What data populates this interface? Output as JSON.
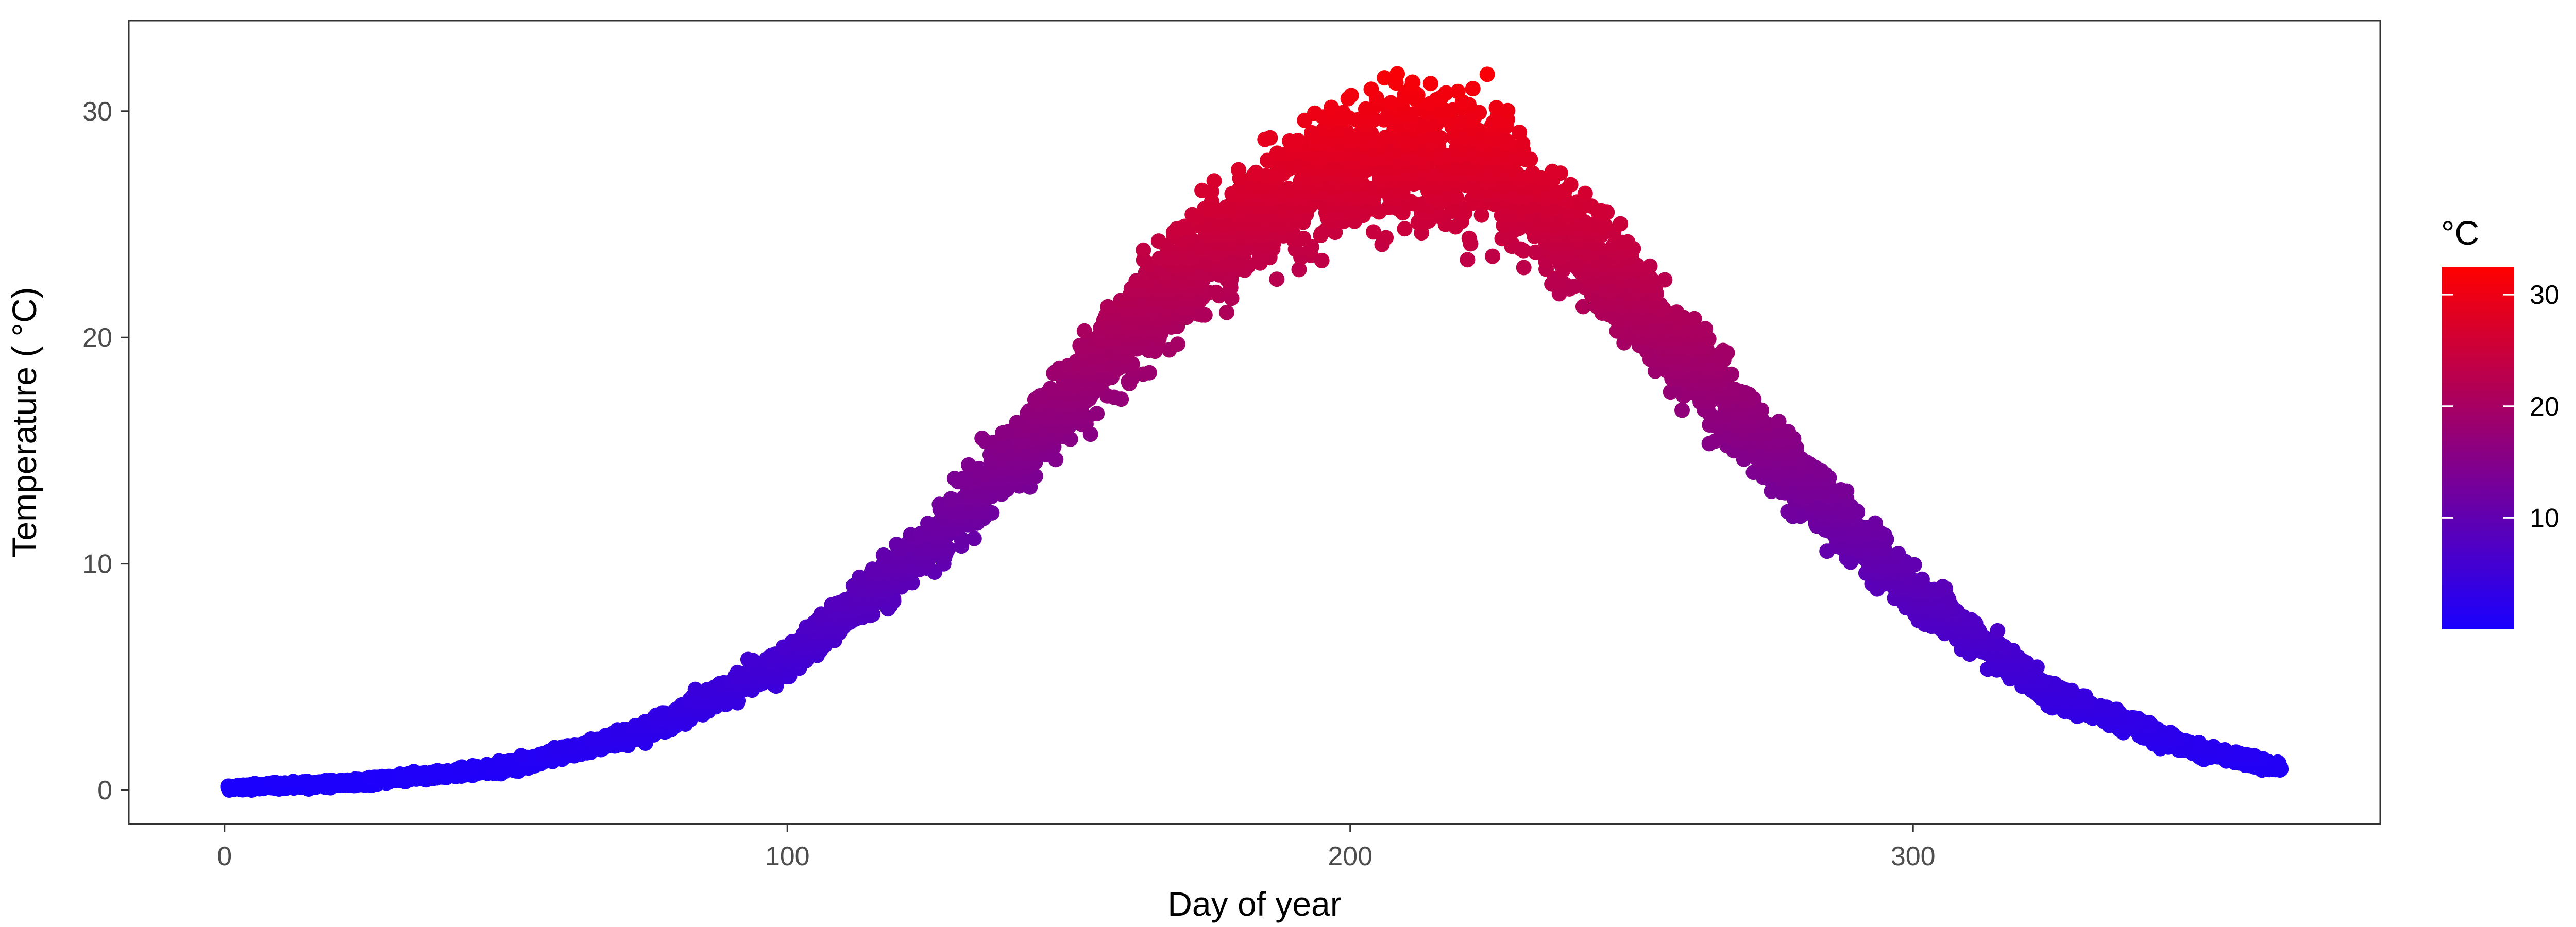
{
  "chart_data": {
    "type": "scatter",
    "title": "",
    "xlabel": "Day of year",
    "ylabel": "Temperature ( °C)",
    "xlim": [
      -17,
      383
    ],
    "ylim": [
      -1.5,
      34
    ],
    "x_ticks": [
      0,
      100,
      200,
      300
    ],
    "y_ticks": [
      0,
      10,
      20,
      30
    ],
    "grid": false,
    "legend": {
      "title": "°C",
      "placement": "right",
      "type": "colorbar",
      "range": [
        0,
        32.5
      ],
      "ticks": [
        10,
        20,
        30
      ],
      "low_color": "#1a00ff",
      "high_color": "#ff0000"
    },
    "series": [
      {
        "description": "daily temperature points, many years per day, colored by temperature",
        "x_range": [
          1,
          365
        ],
        "peak_day": 212,
        "trend": [
          [
            1,
            0.1
          ],
          [
            25,
            0.35
          ],
          [
            50,
            1.0
          ],
          [
            75,
            2.6
          ],
          [
            100,
            5.7
          ],
          [
            125,
            10.8
          ],
          [
            150,
            17.3
          ],
          [
            175,
            24.0
          ],
          [
            200,
            27.8
          ],
          [
            212,
            28.3
          ],
          [
            225,
            27.5
          ],
          [
            250,
            22.0
          ],
          [
            275,
            14.8
          ],
          [
            300,
            8.8
          ],
          [
            325,
            4.2
          ],
          [
            350,
            1.8
          ],
          [
            365,
            1.0
          ]
        ],
        "spread_at_peak": [
          24.0,
          32.5
        ]
      }
    ]
  }
}
